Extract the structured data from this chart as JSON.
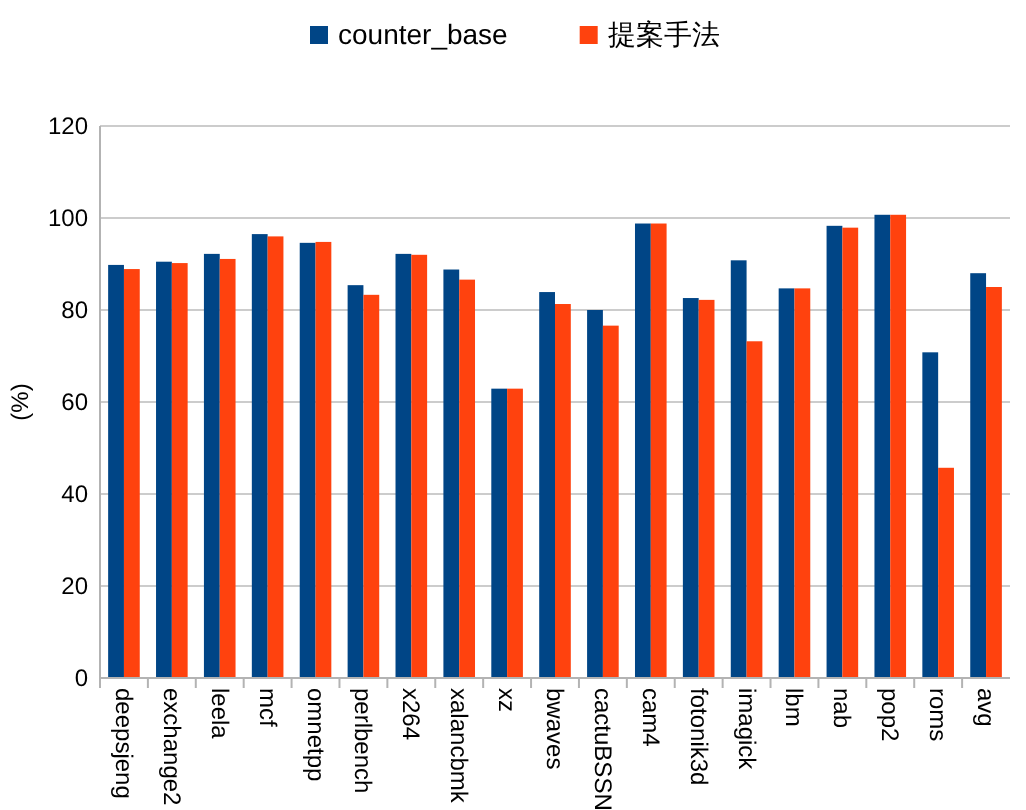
{
  "chart_data": {
    "type": "bar",
    "ylabel": "(%)",
    "categories": [
      "deepsjeng",
      "exchange2",
      "leela",
      "mcf",
      "omnetpp",
      "perlbench",
      "x264",
      "xalancbmk",
      "xz",
      "bwaves",
      "cactuBSSN",
      "cam4",
      "fotonik3d",
      "imagick",
      "lbm",
      "nab",
      "pop2",
      "roms",
      "avg"
    ],
    "series": [
      {
        "name": "counter_base",
        "color": "#004586",
        "values": [
          89.8,
          90.5,
          92.2,
          96.5,
          94.6,
          85.4,
          92.2,
          88.8,
          62.9,
          83.9,
          80.0,
          98.8,
          82.6,
          90.8,
          84.7,
          98.3,
          100.7,
          70.8,
          88.0
        ]
      },
      {
        "name": "提案手法",
        "color": "#ff420e",
        "values": [
          88.9,
          90.2,
          91.1,
          96.0,
          94.8,
          83.3,
          92.0,
          86.6,
          62.9,
          81.3,
          76.6,
          98.8,
          82.2,
          73.2,
          84.7,
          97.9,
          100.7,
          45.7,
          85.0
        ]
      }
    ],
    "ylim": [
      0,
      120
    ],
    "yticks": [
      0,
      20,
      40,
      60,
      80,
      100,
      120
    ],
    "grid": "y",
    "legend": "top"
  }
}
